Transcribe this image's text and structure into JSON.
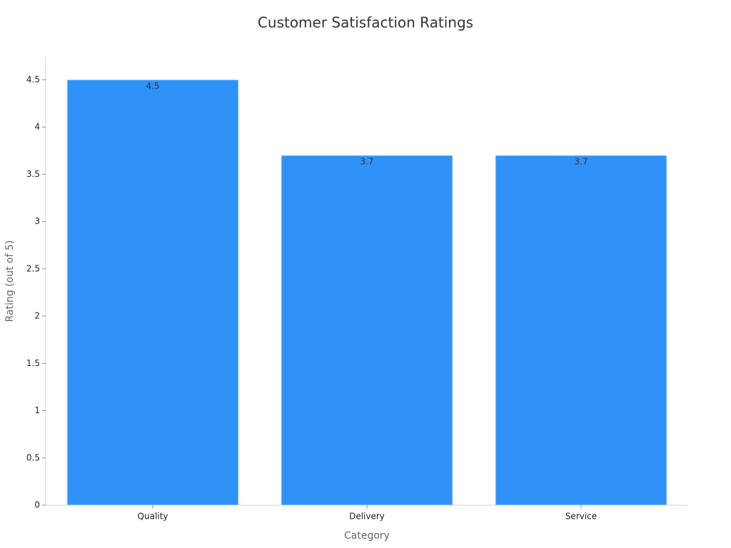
{
  "chart_data": {
    "type": "bar",
    "title": "Customer Satisfaction Ratings",
    "x_label": "Category",
    "y_label": "Rating (out of 5)",
    "categories": [
      "Quality",
      "Delivery",
      "Service"
    ],
    "values": [
      4.5,
      3.7,
      3.7
    ],
    "color": "#2f92f9",
    "ylim": [
      0,
      4.74
    ],
    "yticks": [
      0,
      0.5,
      1,
      1.5,
      2,
      2.5,
      3,
      3.5,
      4,
      4.5
    ],
    "grid": false
  }
}
